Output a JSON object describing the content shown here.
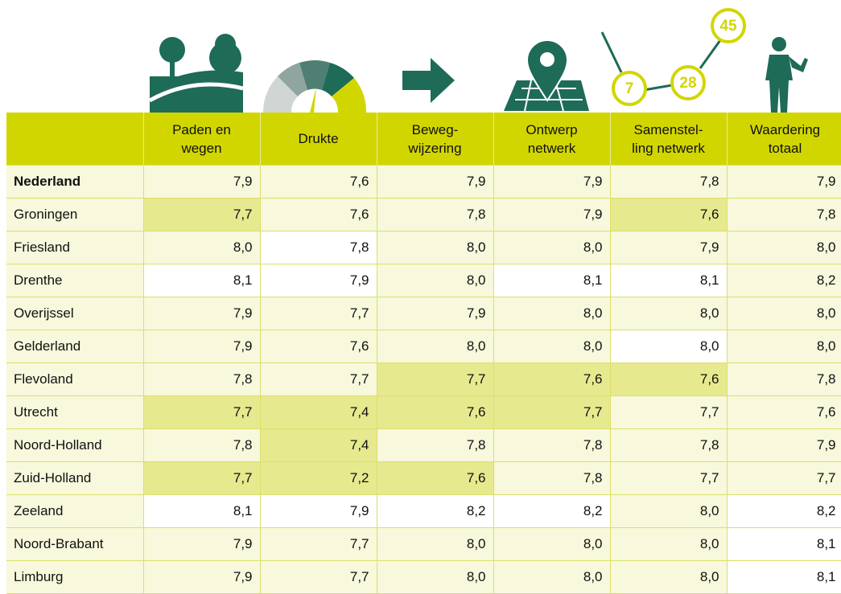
{
  "header_icons": {
    "network_numbers": [
      "7",
      "28",
      "45"
    ]
  },
  "table": {
    "columns": [
      "Paden en\nwegen",
      "Drukte",
      "Beweg-\nwijzering",
      "Ontwerp\nnetwerk",
      "Samenstel-\nling netwerk",
      "Waardering\ntotaal"
    ],
    "rows": [
      [
        "Nederland",
        "7,9",
        "7,6",
        "7,9",
        "7,9",
        "7,8",
        "7,9"
      ],
      [
        "Groningen",
        "7,7",
        "7,6",
        "7,8",
        "7,9",
        "7,6",
        "7,8"
      ],
      [
        "Friesland",
        "8,0",
        "7,8",
        "8,0",
        "8,0",
        "7,9",
        "8,0"
      ],
      [
        "Drenthe",
        "8,1",
        "7,9",
        "8,0",
        "8,1",
        "8,1",
        "8,2"
      ],
      [
        "Overijssel",
        "7,9",
        "7,7",
        "7,9",
        "8,0",
        "8,0",
        "8,0"
      ],
      [
        "Gelderland",
        "7,9",
        "7,6",
        "8,0",
        "8,0",
        "8,0",
        "8,0"
      ],
      [
        "Flevoland",
        "7,8",
        "7,7",
        "7,7",
        "7,6",
        "7,6",
        "7,8"
      ],
      [
        "Utrecht",
        "7,7",
        "7,4",
        "7,6",
        "7,7",
        "7,7",
        "7,6"
      ],
      [
        "Noord-Holland",
        "7,8",
        "7,4",
        "7,8",
        "7,8",
        "7,8",
        "7,9"
      ],
      [
        "Zuid-Holland",
        "7,7",
        "7,2",
        "7,6",
        "7,8",
        "7,7",
        "7,7"
      ],
      [
        "Zeeland",
        "8,1",
        "7,9",
        "8,2",
        "8,2",
        "8,0",
        "8,2"
      ],
      [
        "Noord-Brabant",
        "7,9",
        "7,7",
        "8,0",
        "8,0",
        "8,0",
        "8,1"
      ],
      [
        "Limburg",
        "7,9",
        "7,7",
        "8,0",
        "8,0",
        "8,0",
        "8,1"
      ]
    ],
    "cell_colors": [
      [
        "#f7f8dc",
        "#f7f8dc",
        "#f7f8dc",
        "#f7f8dc",
        "#f7f8dc",
        "#f7f8dc"
      ],
      [
        "#e7e98f",
        "#f7f8dc",
        "#f7f8dc",
        "#f7f8dc",
        "#e7e98f",
        "#f7f8dc"
      ],
      [
        "#f7f8dc",
        "#ffffff",
        "#f7f8dc",
        "#f7f8dc",
        "#f7f8dc",
        "#f7f8dc"
      ],
      [
        "#ffffff",
        "#ffffff",
        "#f7f8dc",
        "#ffffff",
        "#ffffff",
        "#f7f8dc"
      ],
      [
        "#f7f8dc",
        "#f7f8dc",
        "#f7f8dc",
        "#f7f8dc",
        "#f7f8dc",
        "#f7f8dc"
      ],
      [
        "#f7f8dc",
        "#f7f8dc",
        "#f7f8dc",
        "#f7f8dc",
        "#ffffff",
        "#f7f8dc"
      ],
      [
        "#f7f8dc",
        "#f7f8dc",
        "#e7e98f",
        "#e7e98f",
        "#e7e98f",
        "#f7f8dc"
      ],
      [
        "#e7e98f",
        "#e7e98f",
        "#e7e98f",
        "#e7e98f",
        "#f7f8dc",
        "#f7f8dc"
      ],
      [
        "#f7f8dc",
        "#e7e98f",
        "#f7f8dc",
        "#f7f8dc",
        "#f7f8dc",
        "#f7f8dc"
      ],
      [
        "#e7e98f",
        "#e7e98f",
        "#e7e98f",
        "#f7f8dc",
        "#f7f8dc",
        "#f7f8dc"
      ],
      [
        "#ffffff",
        "#ffffff",
        "#ffffff",
        "#ffffff",
        "#f7f8dc",
        "#ffffff"
      ],
      [
        "#f7f8dc",
        "#f7f8dc",
        "#f7f8dc",
        "#f7f8dc",
        "#f7f8dc",
        "#ffffff"
      ],
      [
        "#f7f8dc",
        "#f7f8dc",
        "#f7f8dc",
        "#f7f8dc",
        "#f7f8dc",
        "#ffffff"
      ]
    ]
  }
}
